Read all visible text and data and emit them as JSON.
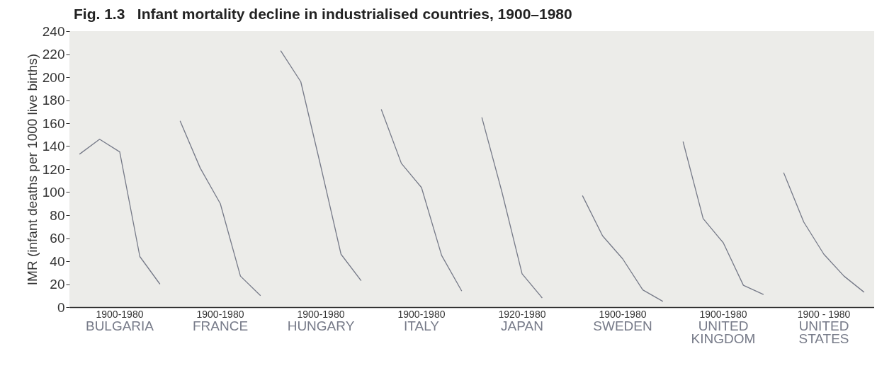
{
  "chart_data": {
    "type": "line",
    "title": "Fig. 1.3   Infant mortality decline in industrialised countries, 1900–1980",
    "ylabel": "IMR (infant deaths per 1000 live births)",
    "annotations": [
      "1900-1980",
      "1900-1980",
      "1900-1980",
      "1900-1980",
      "1920-1980",
      "1900-1980",
      "1900-1980",
      "1900 - 1980"
    ],
    "categories": [
      null,
      null,
      null,
      null,
      null,
      null,
      null,
      null,
      null,
      null,
      null,
      null,
      null,
      null,
      null,
      null,
      null,
      null,
      null,
      null,
      null,
      null,
      null,
      null,
      null,
      null,
      null,
      null,
      null,
      null,
      null,
      null,
      null,
      null,
      null,
      null,
      null,
      null,
      null,
      null
    ],
    "series": [
      {
        "name": "BULGARIA",
        "color": "#767a88",
        "values": [
          133,
          146,
          135,
          44,
          20,
          null,
          null,
          null,
          null,
          null,
          null,
          null,
          null,
          null,
          null,
          null,
          null,
          null,
          null,
          null,
          null,
          null,
          null,
          null,
          null,
          null,
          null,
          null,
          null,
          null,
          null,
          null,
          null,
          null,
          null,
          null,
          null,
          null,
          null,
          null
        ]
      },
      {
        "name": "FRANCE",
        "color": "#767a88",
        "values": [
          null,
          null,
          null,
          null,
          null,
          162,
          121,
          90,
          27,
          10,
          null,
          null,
          null,
          null,
          null,
          null,
          null,
          null,
          null,
          null,
          null,
          null,
          null,
          null,
          null,
          null,
          null,
          null,
          null,
          null,
          null,
          null,
          null,
          null,
          null,
          null,
          null,
          null,
          null,
          null
        ]
      },
      {
        "name": "HUNGARY",
        "color": "#767a88",
        "values": [
          null,
          null,
          null,
          null,
          null,
          null,
          null,
          null,
          null,
          null,
          223,
          196,
          122,
          46,
          23,
          null,
          null,
          null,
          null,
          null,
          null,
          null,
          null,
          null,
          null,
          null,
          null,
          null,
          null,
          null,
          null,
          null,
          null,
          null,
          null,
          null,
          null,
          null,
          null,
          null
        ]
      },
      {
        "name": "ITALY",
        "color": "#767a88",
        "values": [
          null,
          null,
          null,
          null,
          null,
          null,
          null,
          null,
          null,
          null,
          null,
          null,
          null,
          null,
          null,
          172,
          125,
          104,
          45,
          14,
          null,
          null,
          null,
          null,
          null,
          null,
          null,
          null,
          null,
          null,
          null,
          null,
          null,
          null,
          null,
          null,
          null,
          null,
          null,
          null
        ]
      },
      {
        "name": "JAPAN",
        "color": "#767a88",
        "values": [
          null,
          null,
          null,
          null,
          null,
          null,
          null,
          null,
          null,
          null,
          null,
          null,
          null,
          null,
          null,
          null,
          null,
          null,
          null,
          null,
          165,
          100,
          29,
          8,
          null,
          null,
          null,
          null,
          null,
          null,
          null,
          null,
          null,
          null,
          null,
          null,
          null,
          null,
          null,
          null
        ]
      },
      {
        "name": "SWEDEN",
        "color": "#767a88",
        "values": [
          null,
          null,
          null,
          null,
          null,
          null,
          null,
          null,
          null,
          null,
          null,
          null,
          null,
          null,
          null,
          null,
          null,
          null,
          null,
          null,
          null,
          null,
          null,
          null,
          null,
          97,
          62,
          42,
          15,
          5,
          null,
          null,
          null,
          null,
          null,
          null,
          null,
          null,
          null,
          null
        ]
      },
      {
        "name": "UNITED KINGDOM",
        "color": "#767a88",
        "values": [
          null,
          null,
          null,
          null,
          null,
          null,
          null,
          null,
          null,
          null,
          null,
          null,
          null,
          null,
          null,
          null,
          null,
          null,
          null,
          null,
          null,
          null,
          null,
          null,
          null,
          null,
          null,
          null,
          null,
          null,
          144,
          77,
          56,
          19,
          11,
          null,
          null,
          null,
          null,
          null
        ]
      },
      {
        "name": "UNITED STATES",
        "color": "#767a88",
        "values": [
          null,
          null,
          null,
          null,
          null,
          null,
          null,
          null,
          null,
          null,
          null,
          null,
          null,
          null,
          null,
          null,
          null,
          null,
          null,
          null,
          null,
          null,
          null,
          null,
          null,
          null,
          null,
          null,
          null,
          null,
          null,
          null,
          null,
          null,
          null,
          117,
          74,
          46,
          27,
          13
        ]
      }
    ],
    "ylim": [
      0,
      240
    ],
    "yticks": [
      0,
      20,
      40,
      60,
      80,
      100,
      120,
      140,
      160,
      180,
      200,
      220,
      240
    ],
    "grid": false,
    "legend": false
  }
}
